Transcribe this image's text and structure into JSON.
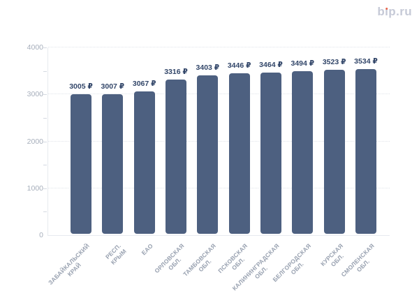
{
  "logo": {
    "text": "bip.ru",
    "prefix": "b",
    "i_char": "ı",
    "suffix": "p.ru",
    "text_color": "#c6cad7",
    "dot_color": "#e8644a"
  },
  "chart_data": {
    "type": "bar",
    "title": "",
    "categories": [
      "ЗАБАЙКАЛЬСКИЙ КРАЙ",
      "РЕСП. КРЫМ",
      "ЕАО",
      "ОРЛОВСКАЯ ОБЛ.",
      "ТАМБОВСКАЯ ОБЛ.",
      "ПСКОВСКАЯ ОБЛ.",
      "КАЛИНИНГРАДСКАЯ ОБЛ.",
      "БЕЛГОРОДСКАЯ ОБЛ.",
      "КУРСКАЯ ОБЛ.",
      "СМОЛЕНСКАЯ ОБЛ."
    ],
    "category_lines": [
      [
        "ЗАБАЙКАЛЬСКИЙ",
        "КРАЙ"
      ],
      [
        "РЕСП. КРЫМ"
      ],
      [
        "ЕАО"
      ],
      [
        "ОРЛОВСКАЯ",
        "ОБЛ."
      ],
      [
        "ТАМБОВСКАЯ",
        "ОБЛ."
      ],
      [
        "ПСКОВСКАЯ",
        "ОБЛ."
      ],
      [
        "КАЛИНИНГРАДСКАЯ",
        "ОБЛ."
      ],
      [
        "БЕЛГОРОДСКАЯ",
        "ОБЛ."
      ],
      [
        "КУРСКАЯ ОБЛ."
      ],
      [
        "СМОЛЕНСКАЯ",
        "ОБЛ."
      ]
    ],
    "values": [
      3005,
      3007,
      3067,
      3316,
      3403,
      3446,
      3464,
      3494,
      3523,
      3534
    ],
    "currency": "₽",
    "value_labels": [
      "3005 ₽",
      "3007 ₽",
      "3067 ₽",
      "3316 ₽",
      "3403 ₽",
      "3446 ₽",
      "3464 ₽",
      "3494 ₽",
      "3523 ₽",
      "3534 ₽"
    ],
    "xlabel": "",
    "ylabel": "",
    "ylim": [
      0,
      4000
    ],
    "yticks": [
      0,
      1000,
      2000,
      3000,
      4000
    ],
    "ytick_labels": [
      "0",
      "1000",
      "2000",
      "3000",
      "4000"
    ],
    "minor_yticks": [
      500,
      1500,
      2500,
      3500
    ],
    "grid": "horizontal-dotted",
    "legend": "none",
    "bar_color": "#4d6080",
    "value_label_color": "#324669",
    "axis_label_color": "#a6aebb",
    "category_label_color": "#98a1b0"
  }
}
